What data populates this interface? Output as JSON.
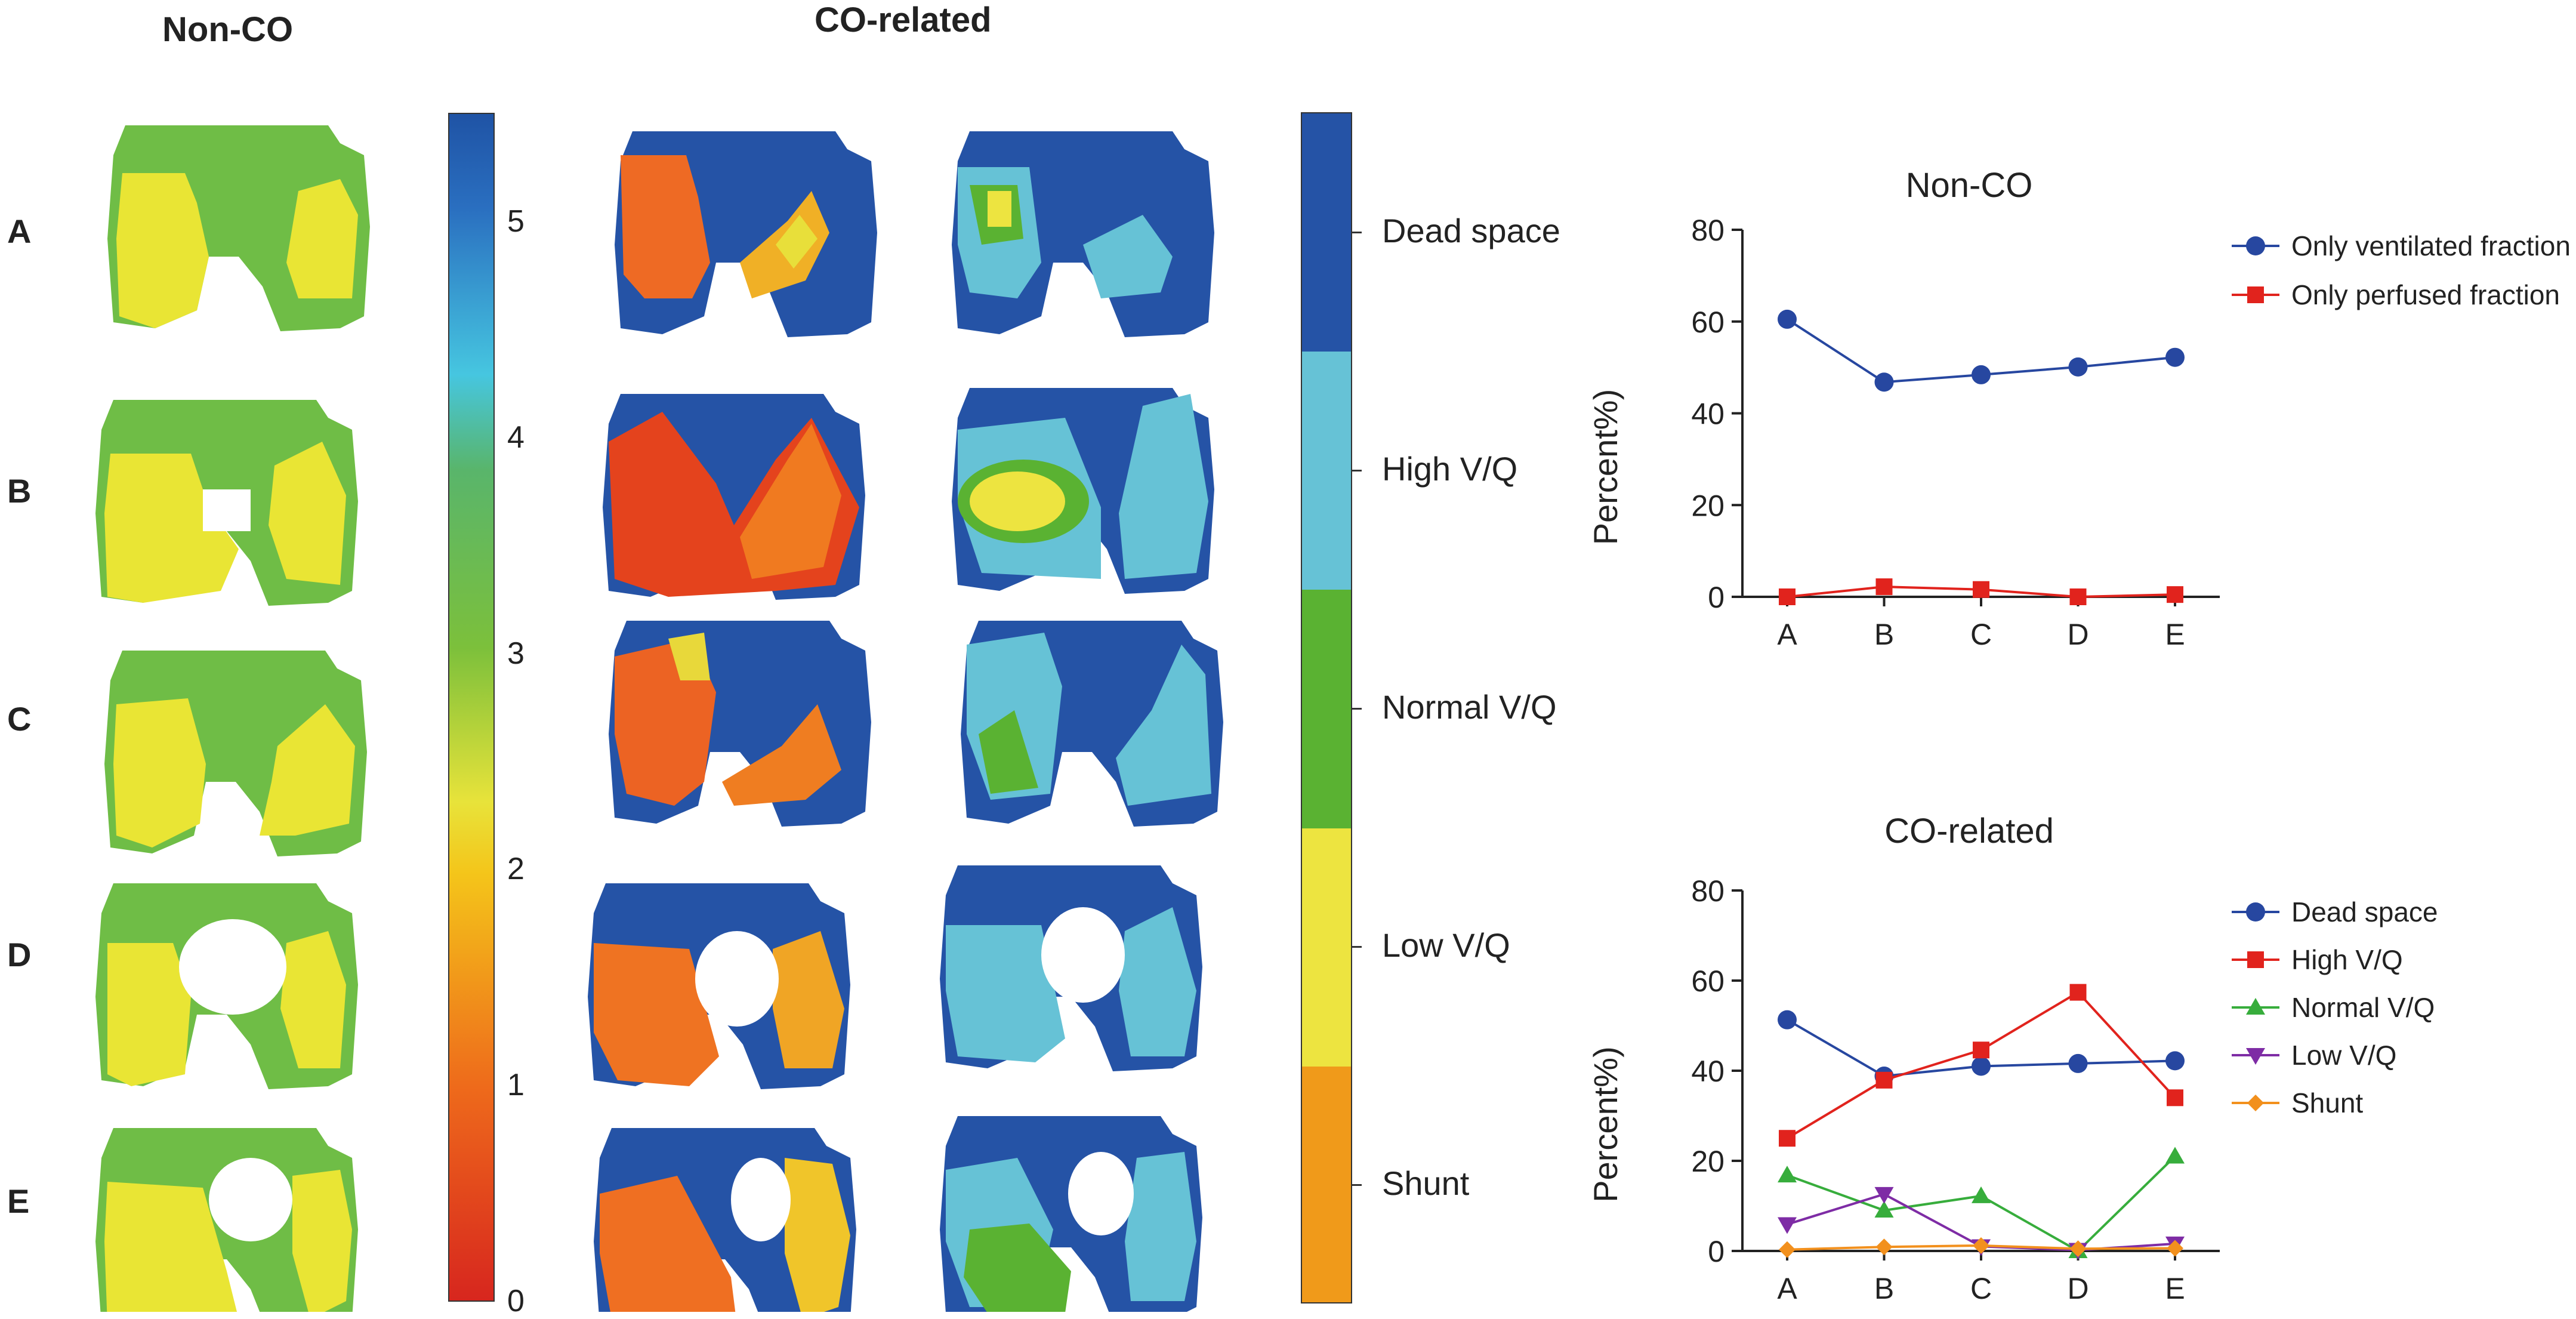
{
  "headers": {
    "non_co": "Non-CO",
    "co_related": "CO-related"
  },
  "row_labels": [
    "A",
    "B",
    "C",
    "D",
    "E"
  ],
  "colorbar": {
    "ticks": [
      "0",
      "1",
      "2",
      "3",
      "4",
      "5"
    ],
    "colors": [
      "#d7261e",
      "#ee6a1b",
      "#f4c51a",
      "#6fbd3a",
      "#46c6e0",
      "#1f53a5"
    ]
  },
  "categories": {
    "labels": [
      "Dead space",
      "High V/Q",
      "Normal V/Q",
      "Low V/Q",
      "Shunt"
    ],
    "colors": [
      "#2553a6",
      "#66c2d6",
      "#5ab232",
      "#ede440",
      "#f09a1a"
    ]
  },
  "chart_data": [
    {
      "type": "line",
      "title": "Non-CO",
      "xlabel": "",
      "ylabel": "Percent%)",
      "categories": [
        "A",
        "B",
        "C",
        "D",
        "E"
      ],
      "ylim": [
        0,
        80
      ],
      "yticks": [
        "0",
        "20",
        "40",
        "60",
        "80"
      ],
      "legend_position": "right",
      "series": [
        {
          "name": "Only ventilated fraction",
          "values": [
            60.5,
            46.8,
            48.4,
            50.1,
            52.2
          ],
          "color": "#2747a0",
          "marker": "circle"
        },
        {
          "name": "Only perfused  fraction",
          "values": [
            0.0,
            2.2,
            1.6,
            0.0,
            0.5
          ],
          "color": "#e1231d",
          "marker": "square"
        }
      ]
    },
    {
      "type": "line",
      "title": "CO-related",
      "xlabel": "",
      "ylabel": "Percent%)",
      "categories": [
        "A",
        "B",
        "C",
        "D",
        "E"
      ],
      "ylim": [
        0,
        80
      ],
      "yticks": [
        "0",
        "20",
        "40",
        "60",
        "80"
      ],
      "legend_position": "right",
      "series": [
        {
          "name": "Dead space",
          "values": [
            51.3,
            38.8,
            41.0,
            41.6,
            42.2
          ],
          "color": "#2747a0",
          "marker": "circle"
        },
        {
          "name": "High V/Q",
          "values": [
            25.0,
            37.9,
            44.6,
            57.4,
            34.0
          ],
          "color": "#e1231d",
          "marker": "square"
        },
        {
          "name": "Normal V/Q",
          "values": [
            16.8,
            9.0,
            12.2,
            0.0,
            21.0
          ],
          "color": "#37ad3c",
          "marker": "triangle-up"
        },
        {
          "name": "Low V/Q",
          "values": [
            5.9,
            12.6,
            1.0,
            0.2,
            1.6
          ],
          "color": "#7e2ca5",
          "marker": "triangle-down"
        },
        {
          "name": "Shunt",
          "values": [
            0.3,
            0.9,
            1.2,
            0.5,
            0.6
          ],
          "color": "#f2901d",
          "marker": "diamond"
        }
      ]
    }
  ]
}
